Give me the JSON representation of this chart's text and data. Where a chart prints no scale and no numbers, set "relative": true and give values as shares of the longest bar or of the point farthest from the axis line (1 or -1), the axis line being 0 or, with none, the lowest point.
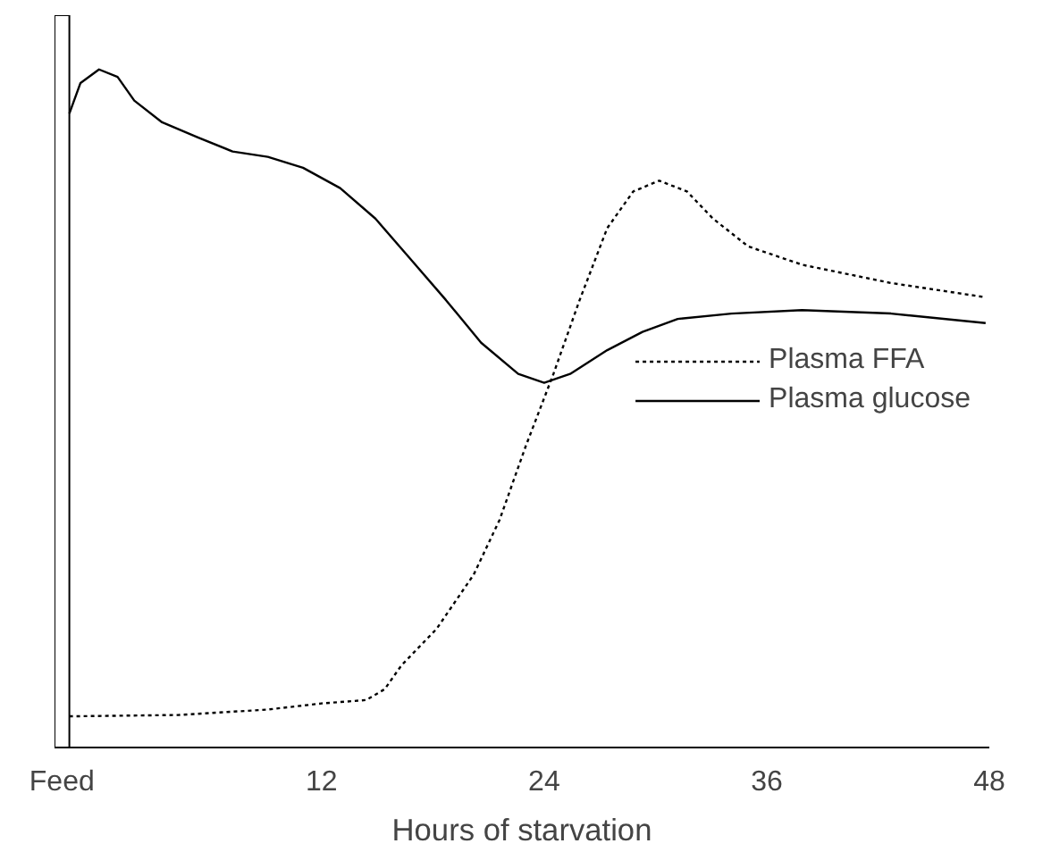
{
  "chart_data": {
    "type": "line",
    "relative": true,
    "xlabel": "Hours of starvation",
    "xlim": [
      -2.4,
      48
    ],
    "xticks": [
      {
        "value": -2,
        "label": "Feed"
      },
      12,
      24,
      36,
      48
    ],
    "legend": "right",
    "grid": false,
    "marker": "none",
    "bands": [
      {
        "axis": "x",
        "from": -2.4,
        "to": -1.6,
        "label": null,
        "color": "#ffffff"
      }
    ],
    "series": [
      {
        "name": "Plasma FFA",
        "color": "#000000",
        "line_style": "dotted",
        "x": [
          -1.6,
          4.3,
          9.1,
          12,
          14.4,
          15.4,
          16.3,
          18.2,
          20.2,
          21.6,
          23,
          24.5,
          25.9,
          27.4,
          28.8,
          30.2,
          31.7,
          33.1,
          35,
          37.9,
          42.7,
          47.8
        ],
        "values": [
          0.046,
          0.048,
          0.056,
          0.065,
          0.07,
          0.086,
          0.121,
          0.175,
          0.255,
          0.336,
          0.444,
          0.551,
          0.659,
          0.766,
          0.82,
          0.836,
          0.82,
          0.78,
          0.739,
          0.712,
          0.685,
          0.664
        ]
      },
      {
        "name": "Plasma glucose",
        "color": "#000000",
        "line_style": "solid",
        "x": [
          -1.6,
          -1.0,
          0,
          1,
          1.9,
          3.4,
          5.3,
          7.2,
          9.1,
          11,
          13,
          14.9,
          16.8,
          18.7,
          20.6,
          22.6,
          24,
          25.4,
          27.4,
          29.3,
          31.2,
          34.1,
          37.9,
          42.7,
          47.8
        ],
        "values": [
          0.935,
          0.98,
          1.0,
          0.989,
          0.954,
          0.922,
          0.9,
          0.879,
          0.871,
          0.855,
          0.825,
          0.78,
          0.72,
          0.66,
          0.597,
          0.551,
          0.538,
          0.551,
          0.586,
          0.613,
          0.632,
          0.64,
          0.645,
          0.64,
          0.626
        ]
      }
    ]
  }
}
